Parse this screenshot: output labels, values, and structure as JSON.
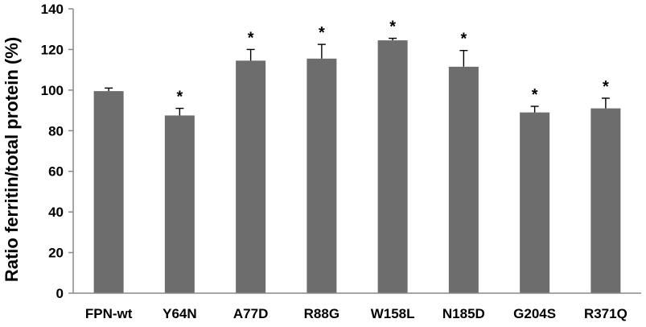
{
  "chart_data": {
    "type": "bar",
    "title": "",
    "xlabel": "",
    "ylabel": "Ratio ferritin/total protein (%)",
    "ylim": [
      0,
      140
    ],
    "yticks": [
      0,
      20,
      40,
      60,
      80,
      100,
      120,
      140
    ],
    "grid": false,
    "legend": "none",
    "categories": [
      "FPN-wt",
      "Y64N",
      "A77D",
      "R88G",
      "W158L",
      "N185D",
      "G204S",
      "R371Q"
    ],
    "values": [
      99.5,
      87.5,
      114.5,
      115.5,
      124.5,
      111.5,
      89,
      91
    ],
    "error_plus": [
      1.5,
      3.5,
      5.5,
      7.0,
      1.0,
      8.0,
      3.0,
      5.0
    ],
    "significance": [
      "",
      "*",
      "*",
      "*",
      "*",
      "*",
      "*",
      "*"
    ],
    "colors": {
      "bar": "#6d6d6d",
      "axis": "#888888",
      "error_bar": "#000000",
      "text": "#000000"
    }
  }
}
